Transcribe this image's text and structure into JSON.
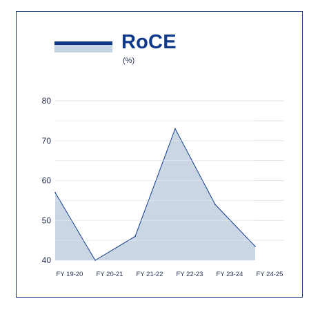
{
  "chart_data": {
    "type": "area",
    "title": "RoCE",
    "subtitle": "(%)",
    "categories": [
      "FY 19-20",
      "FY 20-21",
      "FY 21-22",
      "FY 22-23",
      "FY 23-24",
      "FY 24-25"
    ],
    "series": [
      {
        "values": [
          57,
          40,
          46,
          73,
          54,
          43.5
        ]
      }
    ],
    "yticks": [
      40,
      50,
      60,
      70,
      80
    ],
    "ylim": [
      40,
      80
    ],
    "grid": true,
    "legend": "top-left",
    "colors": {
      "fill": "#cad6e4",
      "line": "#0f3a8a",
      "grid": "#dfe3ea",
      "frame": "#12347a"
    }
  }
}
